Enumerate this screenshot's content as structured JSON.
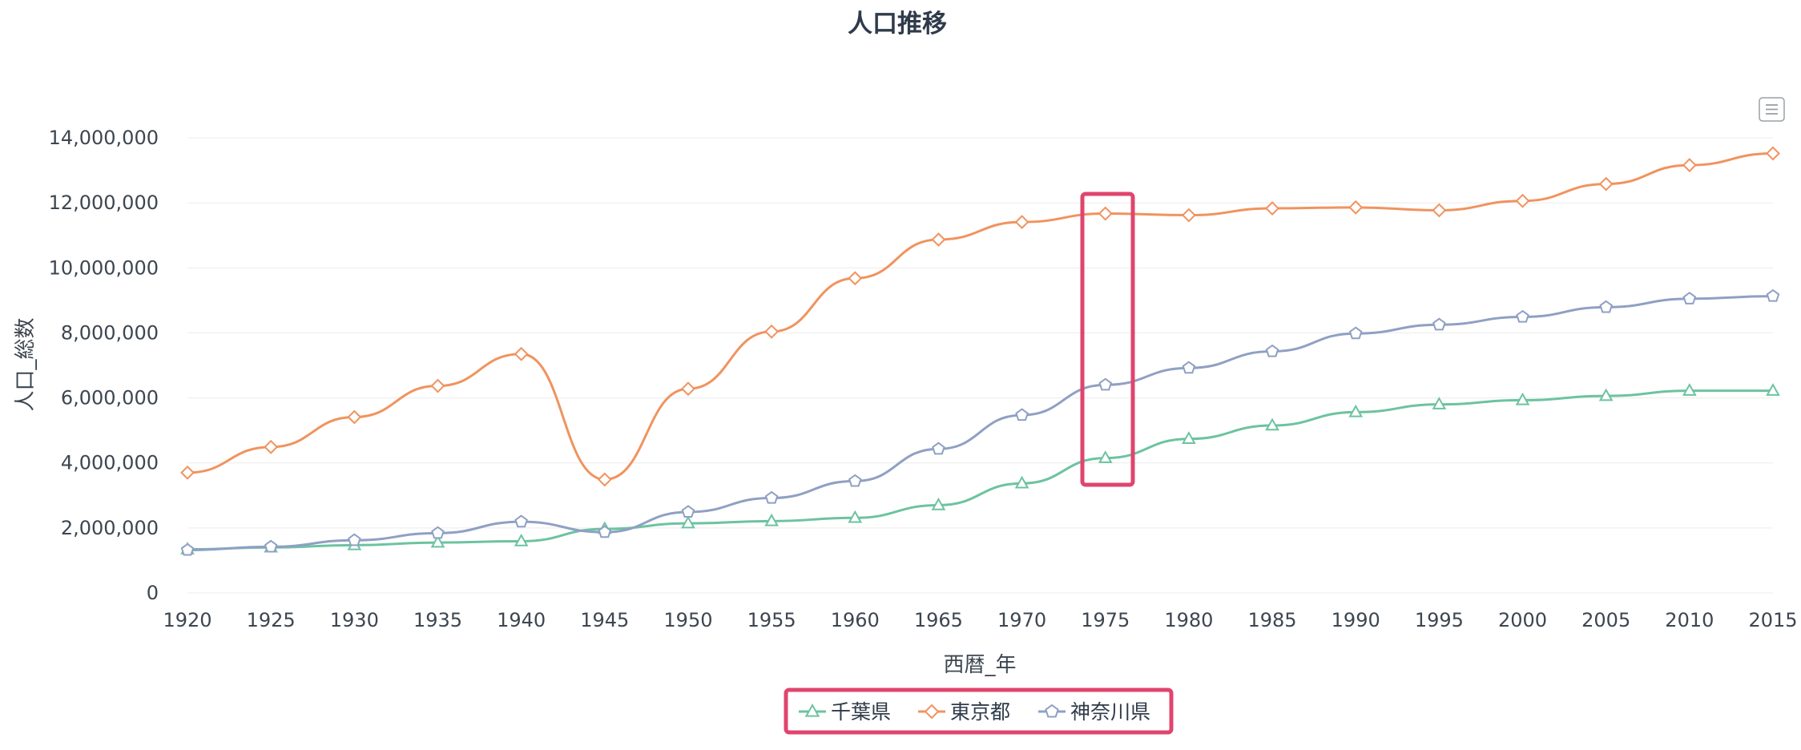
{
  "chart_data": {
    "type": "line",
    "title": "人口推移",
    "xlabel": "西暦_年",
    "ylabel": "人口_総数",
    "ylim": [
      0,
      14000000
    ],
    "yticks": [
      0,
      2000000,
      4000000,
      6000000,
      8000000,
      10000000,
      12000000,
      14000000
    ],
    "ytick_labels": [
      "0",
      "2,000,000",
      "4,000,000",
      "6,000,000",
      "8,000,000",
      "10,000,000",
      "12,000,000",
      "14,000,000"
    ],
    "categories": [
      "1920",
      "1925",
      "1930",
      "1935",
      "1940",
      "1945",
      "1950",
      "1955",
      "1960",
      "1965",
      "1970",
      "1975",
      "1980",
      "1985",
      "1990",
      "1995",
      "2000",
      "2005",
      "2010",
      "2015"
    ],
    "grid": true,
    "legend_position": "bottom-center",
    "series": [
      {
        "name": "千葉県",
        "color": "#6cc3a0",
        "marker": "triangle",
        "values": [
          1340000,
          1400000,
          1470000,
          1550000,
          1590000,
          1970000,
          2140000,
          2210000,
          2310000,
          2700000,
          3370000,
          4150000,
          4740000,
          5150000,
          5560000,
          5800000,
          5930000,
          6060000,
          6220000,
          6220000
        ]
      },
      {
        "name": "東京都",
        "color": "#f0935e",
        "marker": "diamond",
        "values": [
          3700000,
          4490000,
          5410000,
          6370000,
          7350000,
          3490000,
          6280000,
          8040000,
          9680000,
          10870000,
          11410000,
          11670000,
          11620000,
          11830000,
          11860000,
          11770000,
          12060000,
          12580000,
          13160000,
          13520000
        ]
      },
      {
        "name": "神奈川県",
        "color": "#8fa0c3",
        "marker": "pentagon",
        "values": [
          1320000,
          1420000,
          1620000,
          1840000,
          2190000,
          1870000,
          2490000,
          2920000,
          3440000,
          4430000,
          5470000,
          6400000,
          6920000,
          7430000,
          7980000,
          8250000,
          8490000,
          8790000,
          9050000,
          9130000
        ]
      }
    ],
    "highlight_category": "1975",
    "highlight_color": "#e0456e"
  },
  "toolbar": {
    "menu_icon": "hamburger-menu-icon"
  }
}
